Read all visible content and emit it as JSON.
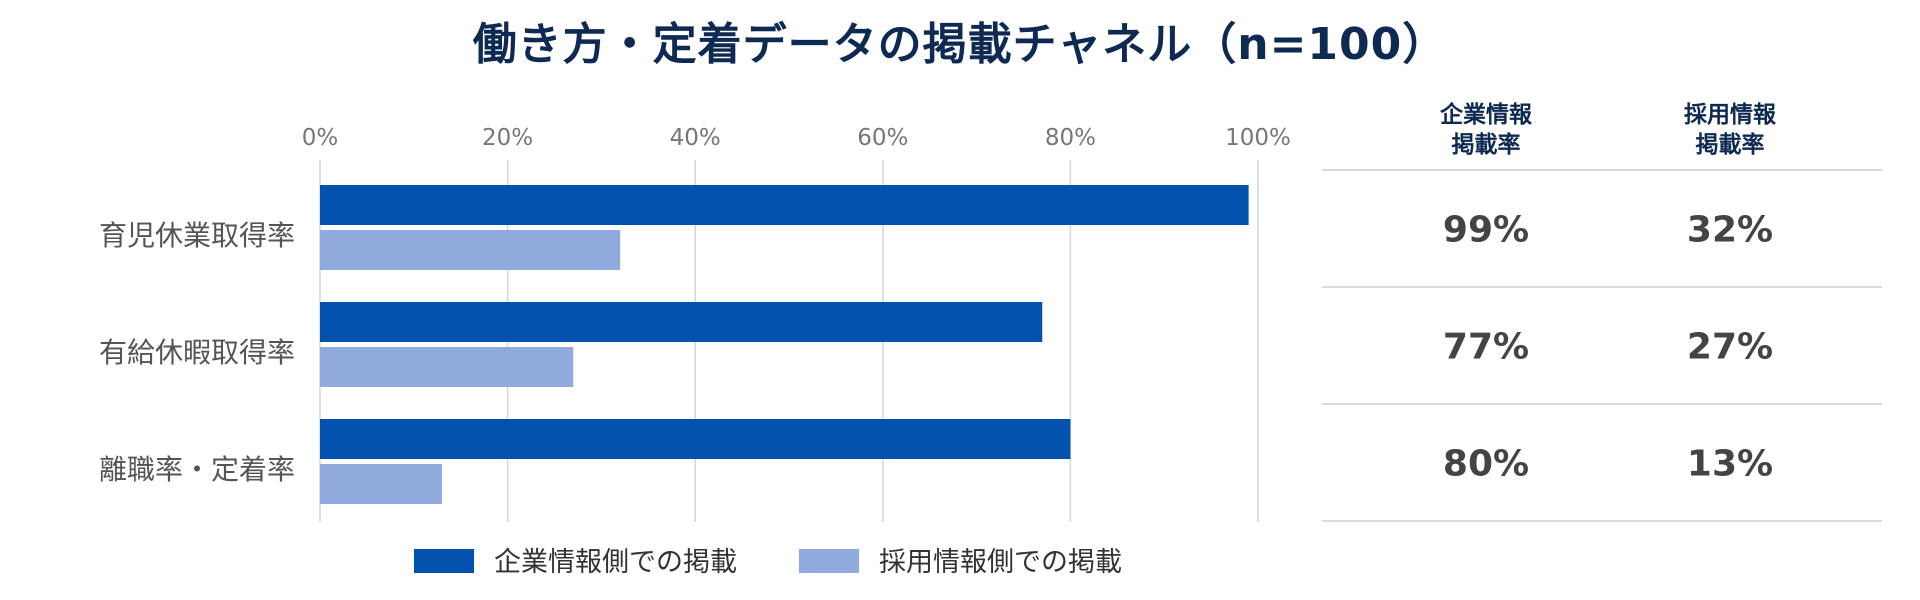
{
  "title": "働き方・定着データの掲載チャネル（n=100）",
  "colors": {
    "corporate": "#0052ad",
    "recruit": "#8faadc",
    "title": "#0e2a52"
  },
  "chart_data": {
    "type": "bar",
    "orientation": "horizontal",
    "categories": [
      "育児休業取得率",
      "有給休暇取得率",
      "離職率・定着率"
    ],
    "series": [
      {
        "name": "企業情報側での掲載",
        "values": [
          99,
          77,
          80
        ]
      },
      {
        "name": "採用情報側での掲載",
        "values": [
          32,
          27,
          13
        ]
      }
    ],
    "xlim": [
      0,
      100
    ],
    "x_ticks": [
      "0%",
      "20%",
      "40%",
      "60%",
      "80%",
      "100%"
    ],
    "grid": true,
    "legend_position": "bottom"
  },
  "table": {
    "headers": [
      [
        "企業情報",
        "掲載率"
      ],
      [
        "採用情報",
        "掲載率"
      ]
    ],
    "rows": [
      [
        "99%",
        "32%"
      ],
      [
        "77%",
        "27%"
      ],
      [
        "80%",
        "13%"
      ]
    ]
  }
}
